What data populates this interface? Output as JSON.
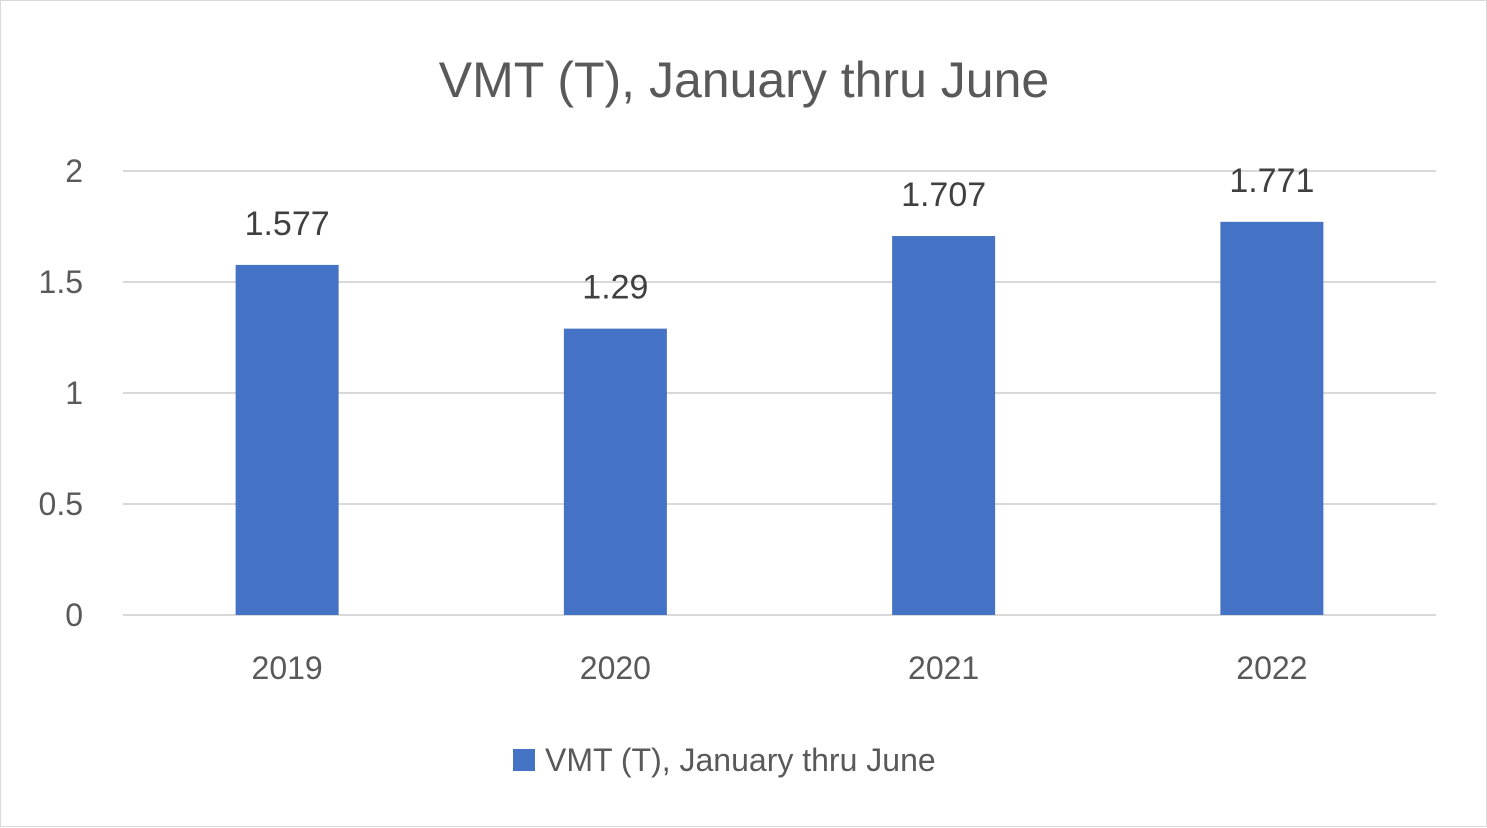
{
  "chart_data": {
    "type": "bar",
    "title": "VMT (T), January thru June",
    "categories": [
      "2019",
      "2020",
      "2021",
      "2022"
    ],
    "series": [
      {
        "name": "VMT (T), January thru June",
        "values": [
          1.577,
          1.29,
          1.707,
          1.771
        ],
        "color": "#4472c4"
      }
    ],
    "data_labels": [
      "1.577",
      "1.29",
      "1.707",
      "1.771"
    ],
    "y_ticks": [
      "0",
      "0.5",
      "1",
      "1.5",
      "2"
    ],
    "ylim": [
      0,
      2
    ],
    "grid": true,
    "legend_position": "bottom"
  }
}
